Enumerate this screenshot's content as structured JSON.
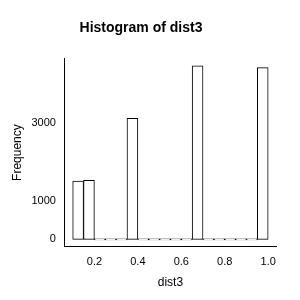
{
  "chart_data": {
    "type": "histogram",
    "title": "Histogram of dist3",
    "x_label": "dist3",
    "y_label": "Frequency",
    "bins": [
      0.1,
      0.15,
      0.2,
      0.25,
      0.3,
      0.35,
      0.4,
      0.45,
      0.5,
      0.55,
      0.6,
      0.65,
      0.7,
      0.75,
      0.8,
      0.85,
      0.9,
      0.95,
      1.0
    ],
    "values": [
      1510,
      1530,
      0,
      0,
      0,
      3130,
      0,
      0,
      0,
      0,
      0,
      4490,
      0,
      0,
      0,
      0,
      0,
      4440
    ],
    "color": "#ffffff",
    "xlim": [
      0.064,
      1.036
    ],
    "ylim": [
      -180,
      4670
    ],
    "xticks": [
      0.2,
      0.4,
      0.6,
      0.8,
      {
        "value": 1,
        "label": "1.0"
      }
    ],
    "yticks": [
      0,
      1000,
      3000
    ],
    "grid": false
  }
}
